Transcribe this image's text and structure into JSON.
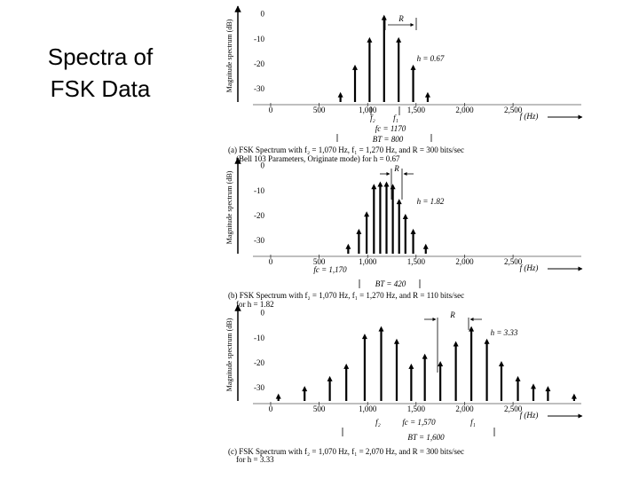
{
  "slide": {
    "title": "Spectra of FSK Data"
  },
  "chart_data": [
    {
      "type": "stem",
      "color": "#000000",
      "ylabel": "Magnitude spectrum (dB)",
      "xlabel": "f (Hz)",
      "x": [
        720,
        870,
        1020,
        1170,
        1320,
        1470,
        1620
      ],
      "values": [
        -31,
        -20,
        -9,
        0,
        -9,
        -20,
        -31
      ],
      "xlim": [
        -300,
        3250
      ],
      "ylim": [
        -35,
        2
      ],
      "xticks": [
        0,
        500,
        {
          "value": 1000,
          "label": "1,000"
        },
        {
          "value": 1500,
          "label": "1,500"
        },
        {
          "value": 2000,
          "label": "2,000"
        },
        {
          "value": 2500,
          "label": "2,500"
        }
      ],
      "yticks": [
        0,
        -10,
        -20,
        -30
      ],
      "annotations": [
        "R",
        "h = 0.67",
        "f₂",
        "f₁",
        "fc = 1170",
        "BT = 800"
      ],
      "caption": [
        "(a) FSK Spectrum with f₂ = 1,070 Hz, f₁ = 1,270 Hz, and R = 300 bits/sec",
        "(Bell 103 Parameters, Originate mode) for h = 0.67"
      ]
    },
    {
      "type": "stem",
      "color": "#000000",
      "ylabel": "Magnitude spectrum (dB)",
      "xlabel": "f (Hz)",
      "x": [
        800,
        910,
        990,
        1065,
        1130,
        1195,
        1260,
        1325,
        1390,
        1470,
        1600
      ],
      "values": [
        -31,
        -25,
        -18,
        -7,
        -6,
        -6,
        -7,
        -13,
        -19,
        -25,
        -31
      ],
      "xlim": [
        -300,
        3250
      ],
      "ylim": [
        -35,
        2
      ],
      "xticks": [
        0,
        500,
        {
          "value": 1000,
          "label": "1,000"
        },
        {
          "value": 1500,
          "label": "1,500"
        },
        {
          "value": 2000,
          "label": "2,000"
        },
        {
          "value": 2500,
          "label": "2,500"
        }
      ],
      "yticks": [
        0,
        -10,
        -20,
        -30
      ],
      "annotations": [
        "R",
        "h = 1.82",
        "fc = 1,170",
        "BT = 420"
      ],
      "caption": [
        "(b) FSK Spectrum with f₂ = 1,070 Hz, f₁ = 1,270 Hz, and R = 110 bits/sec",
        "for h = 1.82"
      ]
    },
    {
      "type": "stem",
      "color": "#000000",
      "ylabel": "Magnitude spectrum (dB)",
      "xlabel": "f (Hz)",
      "x": [
        80,
        350,
        610,
        780,
        970,
        1140,
        1300,
        1450,
        1590,
        1750,
        1910,
        2070,
        2230,
        2380,
        2550,
        2710,
        2860,
        3130
      ],
      "values": [
        -32,
        -29,
        -25,
        -20,
        -8,
        -5,
        -10,
        -20,
        -16,
        -19,
        -11,
        -5,
        -10,
        -19,
        -25,
        -28,
        -29,
        -32
      ],
      "xlim": [
        -300,
        3250
      ],
      "ylim": [
        -35,
        2
      ],
      "xticks": [
        0,
        500,
        {
          "value": 1000,
          "label": "1,000"
        },
        {
          "value": 1500,
          "label": "1,500"
        },
        {
          "value": 2000,
          "label": "2,000"
        },
        {
          "value": 2500,
          "label": "2,500"
        }
      ],
      "yticks": [
        0,
        -10,
        -20,
        -30
      ],
      "annotations": [
        "R",
        "h = 3.33",
        "f₂",
        "fc = 1,570",
        "f₁",
        "BT = 1,600"
      ],
      "caption": [
        "(c) FSK Spectrum with f₂ = 1,070 Hz, f₁ = 2,070 Hz, and R = 300 bits/sec",
        "for h = 3.33"
      ]
    }
  ]
}
